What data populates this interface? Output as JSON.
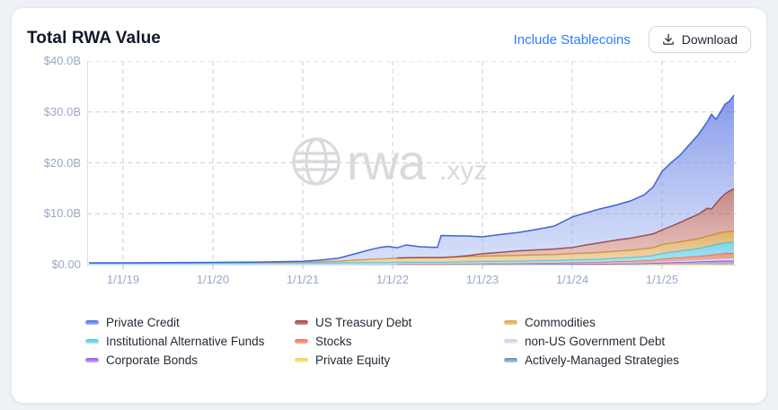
{
  "header": {
    "title": "Total RWA Value",
    "include_stablecoins_label": "Include Stablecoins",
    "download_label": "Download"
  },
  "watermark": {
    "text": "rwa",
    "suffix": ".xyz",
    "color": "#d8dade"
  },
  "colors": {
    "accent_link": "#2e7cf6",
    "axis_label": "#9aa8c6",
    "grid_line": "#c9cdd6",
    "axis_line": "#d9dee8"
  },
  "chart_data": {
    "type": "area",
    "stacked": true,
    "title": "Total RWA Value",
    "unit": "USD billions",
    "grid": "dashed",
    "legend_position": "bottom",
    "ylim": [
      0,
      40
    ],
    "y_ticks": [
      {
        "value": 40,
        "label": "$40.0B"
      },
      {
        "value": 30,
        "label": "$30.0B"
      },
      {
        "value": 20,
        "label": "$20.0B"
      },
      {
        "value": 10,
        "label": "$10.0B"
      },
      {
        "value": 0,
        "label": "$0.00"
      }
    ],
    "x_range": [
      2018.6,
      2025.8
    ],
    "x_ticks": [
      {
        "year": 2019,
        "label": "1/1/19"
      },
      {
        "year": 2020,
        "label": "1/1/20"
      },
      {
        "year": 2021,
        "label": "1/1/21"
      },
      {
        "year": 2022,
        "label": "1/1/22"
      },
      {
        "year": 2023,
        "label": "1/1/23"
      },
      {
        "year": 2024,
        "label": "1/1/24"
      },
      {
        "year": 2025,
        "label": "1/1/25"
      }
    ],
    "x": [
      2018.62,
      2019,
      2019.5,
      2020,
      2020.5,
      2021,
      2021.2,
      2021.4,
      2021.6,
      2021.75,
      2021.85,
      2021.95,
      2022.05,
      2022.15,
      2022.3,
      2022.45,
      2022.5,
      2022.54,
      2022.7,
      2022.85,
      2023,
      2023.2,
      2023.4,
      2023.6,
      2023.8,
      2024,
      2024.15,
      2024.3,
      2024.5,
      2024.65,
      2024.8,
      2024.9,
      2025,
      2025.1,
      2025.2,
      2025.3,
      2025.4,
      2025.5,
      2025.55,
      2025.6,
      2025.65,
      2025.7,
      2025.75,
      2025.8
    ],
    "series": [
      {
        "id": "ams",
        "name": "Actively-Managed Strategies",
        "line": "#5d87b8",
        "fill_top": "rgba(120,160,200,0.9)",
        "fill_bottom": "rgba(160,195,225,0.85)",
        "values": [
          0,
          0,
          0,
          0,
          0,
          0,
          0,
          0,
          0,
          0,
          0,
          0,
          0,
          0,
          0,
          0,
          0,
          0,
          0,
          0,
          0,
          0,
          0,
          0,
          0,
          0.02,
          0.02,
          0.02,
          0.03,
          0.03,
          0.03,
          0.03,
          0.04,
          0.04,
          0.04,
          0.04,
          0.05,
          0.05,
          0.05,
          0.05,
          0.05,
          0.05,
          0.05,
          0.05
        ]
      },
      {
        "id": "pe",
        "name": "Private Equity",
        "line": "#eccf4d",
        "fill_top": "rgba(242,220,110,0.9)",
        "fill_bottom": "rgba(248,236,170,0.85)",
        "values": [
          0,
          0,
          0,
          0,
          0,
          0,
          0,
          0,
          0,
          0.02,
          0.02,
          0.02,
          0.03,
          0.03,
          0.03,
          0.03,
          0.03,
          0.03,
          0.04,
          0.04,
          0.05,
          0.05,
          0.05,
          0.06,
          0.06,
          0.06,
          0.07,
          0.07,
          0.08,
          0.08,
          0.09,
          0.09,
          0.1,
          0.1,
          0.11,
          0.12,
          0.12,
          0.13,
          0.13,
          0.14,
          0.14,
          0.15,
          0.15,
          0.15
        ]
      },
      {
        "id": "cb",
        "name": "Corporate Bonds",
        "line": "#8b46d9",
        "fill_top": "rgba(165,115,230,0.85)",
        "fill_bottom": "rgba(200,165,240,0.8)",
        "values": [
          0,
          0,
          0,
          0,
          0,
          0,
          0,
          0,
          0,
          0,
          0,
          0,
          0,
          0,
          0,
          0,
          0,
          0,
          0,
          0,
          0.02,
          0.02,
          0.02,
          0.03,
          0.03,
          0.05,
          0.05,
          0.06,
          0.1,
          0.12,
          0.15,
          0.18,
          0.25,
          0.3,
          0.35,
          0.4,
          0.45,
          0.5,
          0.52,
          0.55,
          0.58,
          0.6,
          0.6,
          0.6
        ]
      },
      {
        "id": "nusg",
        "name": "non-US Government Debt",
        "line": "#b9cbdf",
        "fill_top": "rgba(205,220,236,0.95)",
        "fill_bottom": "rgba(225,236,245,0.95)",
        "values": [
          0,
          0,
          0,
          0,
          0,
          0,
          0,
          0,
          0.02,
          0.02,
          0.02,
          0.02,
          0.05,
          0.05,
          0.05,
          0.05,
          0.05,
          0.05,
          0.08,
          0.08,
          0.1,
          0.1,
          0.1,
          0.12,
          0.12,
          0.15,
          0.15,
          0.15,
          0.2,
          0.2,
          0.2,
          0.2,
          0.25,
          0.3,
          0.3,
          0.35,
          0.35,
          0.4,
          0.4,
          0.45,
          0.45,
          0.5,
          0.5,
          0.5
        ]
      },
      {
        "id": "stk",
        "name": "Stocks",
        "line": "#ec6c4e",
        "fill_top": "rgba(240,125,95,0.85)",
        "fill_bottom": "rgba(248,175,155,0.8)",
        "values": [
          0,
          0,
          0,
          0,
          0,
          0,
          0,
          0,
          0,
          0,
          0,
          0,
          0.02,
          0.02,
          0.02,
          0.02,
          0.02,
          0.02,
          0.03,
          0.04,
          0.05,
          0.06,
          0.08,
          0.1,
          0.12,
          0.15,
          0.18,
          0.2,
          0.25,
          0.3,
          0.35,
          0.4,
          0.5,
          0.55,
          0.6,
          0.65,
          0.7,
          0.8,
          0.85,
          0.9,
          0.95,
          1.0,
          1.0,
          1.0
        ]
      },
      {
        "id": "iaf",
        "name": "Institutional Alternative Funds",
        "line": "#45c0e6",
        "fill_top": "rgba(110,208,236,0.9)",
        "fill_bottom": "rgba(165,226,243,0.85)",
        "values": [
          0.3,
          0.3,
          0.32,
          0.35,
          0.35,
          0.38,
          0.38,
          0.38,
          0.4,
          0.4,
          0.4,
          0.4,
          0.4,
          0.4,
          0.4,
          0.4,
          0.4,
          0.4,
          0.42,
          0.45,
          0.45,
          0.45,
          0.48,
          0.5,
          0.5,
          0.55,
          0.55,
          0.6,
          0.65,
          0.7,
          0.8,
          0.9,
          1.1,
          1.2,
          1.3,
          1.4,
          1.5,
          1.7,
          1.8,
          1.9,
          2.0,
          2.0,
          2.1,
          2.1
        ]
      },
      {
        "id": "cmd",
        "name": "Commodities",
        "line": "#d49a3c",
        "fill_top": "rgba(214,160,70,0.8)",
        "fill_bottom": "rgba(235,205,150,0.75)",
        "values": [
          0,
          0,
          0,
          0,
          0.02,
          0.1,
          0.2,
          0.3,
          0.5,
          0.6,
          0.7,
          0.75,
          0.8,
          0.85,
          0.9,
          0.9,
          0.9,
          0.9,
          0.95,
          1.0,
          1.0,
          1.05,
          1.1,
          1.1,
          1.15,
          1.2,
          1.25,
          1.3,
          1.35,
          1.4,
          1.5,
          1.55,
          1.7,
          1.75,
          1.8,
          1.85,
          1.9,
          2.0,
          2.0,
          2.05,
          2.1,
          2.1,
          2.1,
          2.1
        ]
      },
      {
        "id": "ust",
        "name": "US Treasury Debt",
        "line": "#9a3833",
        "fill_top": "rgba(160,64,58,0.62)",
        "fill_bottom": "rgba(212,142,132,0.5)",
        "values": [
          0,
          0,
          0,
          0,
          0,
          0,
          0,
          0,
          0,
          0,
          0,
          0,
          0.02,
          0.02,
          0.02,
          0.02,
          0.02,
          0.02,
          0.05,
          0.2,
          0.5,
          0.7,
          0.9,
          1.0,
          1.1,
          1.2,
          1.6,
          1.9,
          2.2,
          2.4,
          2.6,
          2.7,
          2.9,
          3.3,
          3.8,
          4.3,
          4.8,
          5.5,
          5.2,
          6.0,
          6.8,
          7.5,
          8.0,
          8.4
        ]
      },
      {
        "id": "pc",
        "name": "Private Credit",
        "line": "#3f62dd",
        "fill_top": "rgba(86,112,224,0.72)",
        "fill_bottom": "rgba(160,180,240,0.42)",
        "values": [
          0.05,
          0.06,
          0.07,
          0.1,
          0.13,
          0.17,
          0.32,
          0.6,
          1.3,
          1.9,
          2.2,
          2.4,
          2.0,
          2.5,
          2.1,
          2.0,
          2.0,
          4.3,
          4.1,
          3.8,
          3.3,
          3.5,
          3.6,
          4.0,
          4.5,
          6.0,
          6.3,
          6.6,
          6.9,
          7.3,
          8.0,
          9.2,
          11.5,
          12.5,
          13.2,
          14.4,
          15.6,
          16.9,
          18.6,
          16.5,
          16.9,
          17.6,
          17.6,
          18.4
        ]
      }
    ]
  },
  "legend": {
    "items": [
      {
        "label": "Private Credit",
        "top": "#4a6be6",
        "bottom": "#a9bcf2"
      },
      {
        "label": "Institutional Alternative Funds",
        "top": "#46c3e9",
        "bottom": "#abe4f5"
      },
      {
        "label": "Corporate Bonds",
        "top": "#9a52e8",
        "bottom": "#cdaaf3"
      },
      {
        "label": "US Treasury Debt",
        "top": "#a23e39",
        "bottom": "#cf8d85"
      },
      {
        "label": "Stocks",
        "top": "#ee6e4f",
        "bottom": "#f7b3a2"
      },
      {
        "label": "Private Equity",
        "top": "#eed052",
        "bottom": "#f8ecae"
      },
      {
        "label": "Commodities",
        "top": "#d9a242",
        "bottom": "#ecd096"
      },
      {
        "label": "non-US Government Debt",
        "top": "#c2d2e3",
        "bottom": "#e5edf5"
      },
      {
        "label": "Actively-Managed Strategies",
        "top": "#6089ba",
        "bottom": "#aecade"
      }
    ]
  }
}
